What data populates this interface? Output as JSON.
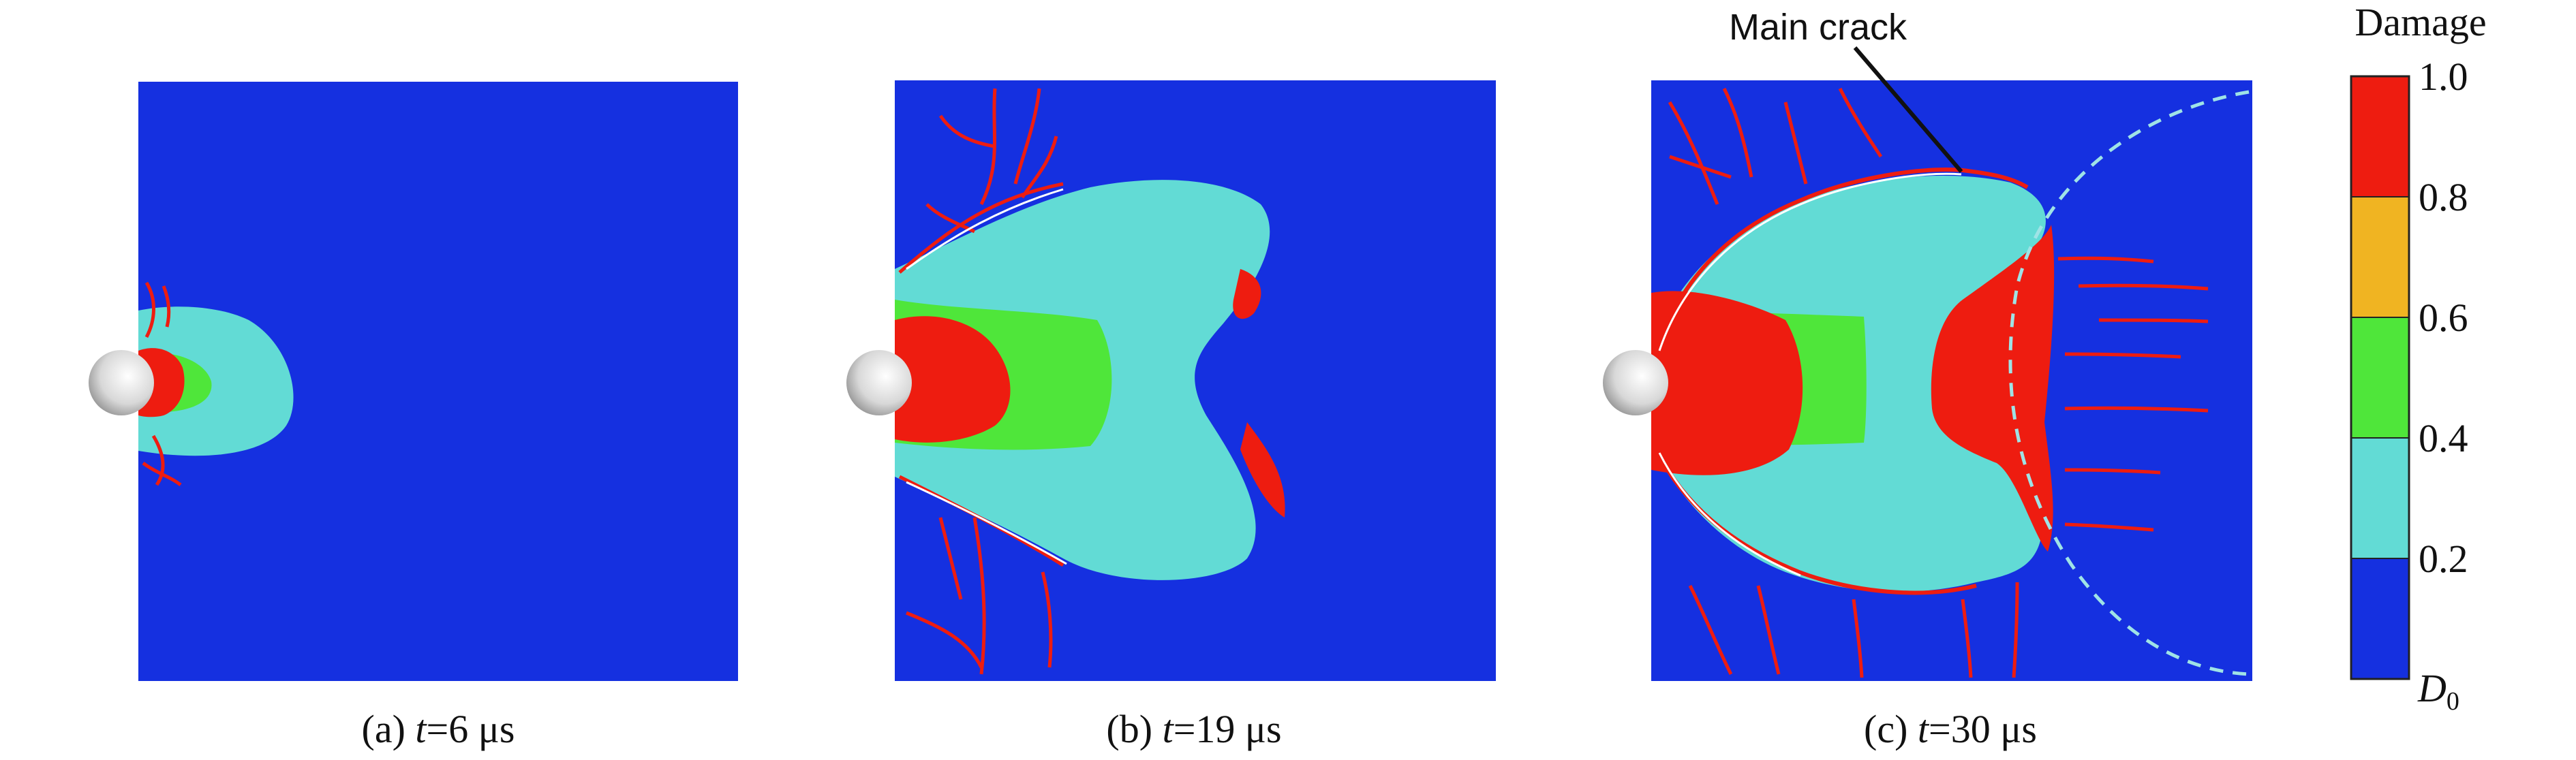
{
  "colors": {
    "d0": "#1530e0",
    "low": "#62dbd5",
    "mid": "#4fe63a",
    "high": "#f0b422",
    "full": "#ee1c10",
    "crack_outline": "#ffffff",
    "wave_front": "#9fe3e6",
    "projectile": "#d9d9d9"
  },
  "panels": [
    {
      "letter": "(a) ",
      "t": "t",
      "eq": "=6 μs"
    },
    {
      "letter": "(b) ",
      "t": "t",
      "eq": "=19 μs"
    },
    {
      "letter": "(c) ",
      "t": "t",
      "eq": "=30 μs"
    }
  ],
  "annotation": {
    "label": "Main crack"
  },
  "colorbar": {
    "title": "Damage",
    "ticks": [
      "1.0",
      "0.8",
      "0.6",
      "0.4",
      "0.2"
    ],
    "bottom_label": "D",
    "bottom_sub": "0",
    "bands": [
      "full",
      "high",
      "mid",
      "low",
      "d0"
    ]
  }
}
